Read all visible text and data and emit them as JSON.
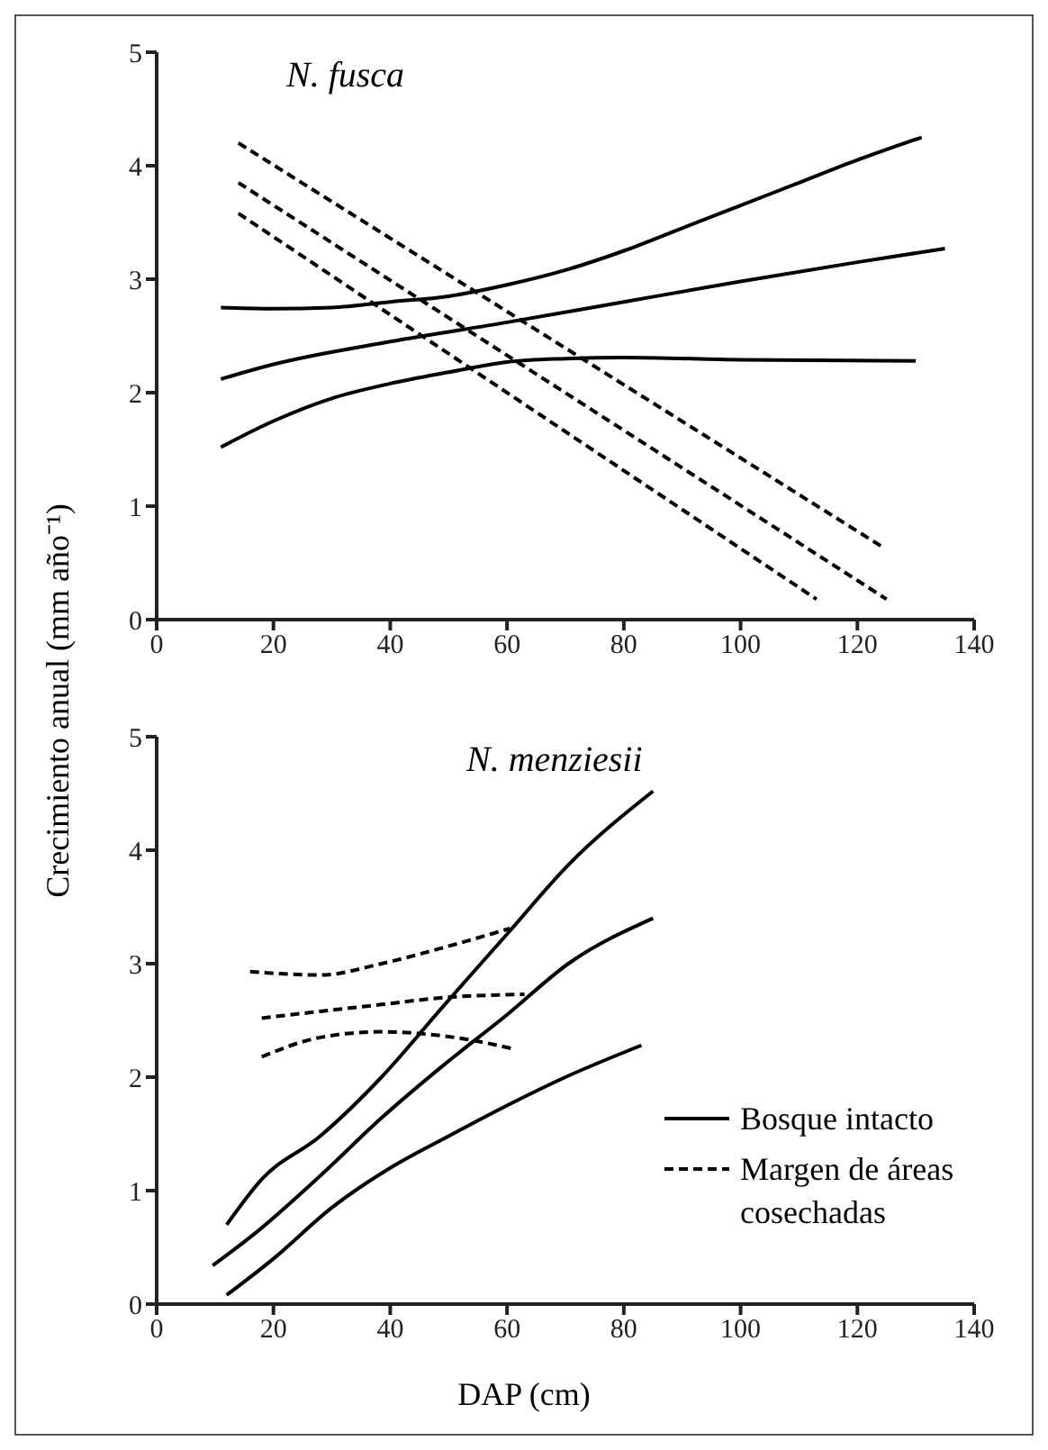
{
  "chart_data": [
    {
      "type": "line",
      "title": "N. fusca",
      "ylabel": "Crecimiento anual (mm año⁻¹)",
      "xlim": [
        0,
        140
      ],
      "xticks": [
        0,
        20,
        40,
        60,
        80,
        100,
        120,
        140
      ],
      "ylim": [
        0,
        5
      ],
      "yticks": [
        0,
        1,
        2,
        3,
        4,
        5
      ],
      "series": [
        {
          "color": "#000000",
          "line_style": "solid",
          "x": [
            11,
            20,
            30,
            40,
            50,
            60,
            70,
            80,
            90,
            100,
            110,
            120,
            131
          ],
          "values": [
            2.75,
            2.74,
            2.75,
            2.8,
            2.85,
            2.95,
            3.08,
            3.25,
            3.45,
            3.65,
            3.85,
            4.05,
            4.25
          ]
        },
        {
          "color": "#000000",
          "line_style": "solid",
          "x": [
            11,
            20,
            40,
            60,
            80,
            100,
            120,
            135
          ],
          "values": [
            2.12,
            2.25,
            2.45,
            2.62,
            2.8,
            2.98,
            3.15,
            3.27
          ]
        },
        {
          "color": "#000000",
          "line_style": "solid",
          "x": [
            11,
            20,
            30,
            40,
            50,
            60,
            70,
            80,
            100,
            130
          ],
          "values": [
            1.52,
            1.75,
            1.95,
            2.08,
            2.18,
            2.27,
            2.3,
            2.31,
            2.29,
            2.28
          ]
        },
        {
          "color": "#000000",
          "line_style": "dashed",
          "x": [
            14,
            124
          ],
          "values": [
            4.2,
            0.65
          ]
        },
        {
          "color": "#000000",
          "line_style": "dashed",
          "x": [
            14,
            125
          ],
          "values": [
            3.85,
            0.18
          ]
        },
        {
          "color": "#000000",
          "line_style": "dashed",
          "x": [
            14,
            113
          ],
          "values": [
            3.58,
            0.18
          ]
        }
      ]
    },
    {
      "type": "line",
      "title": "N. menziesii",
      "xlabel": "DAP (cm)",
      "xlim": [
        0,
        140
      ],
      "xticks": [
        0,
        20,
        40,
        60,
        80,
        100,
        120,
        140
      ],
      "ylim": [
        0,
        5
      ],
      "yticks": [
        0,
        1,
        2,
        3,
        4,
        5
      ],
      "legend": "bottom right",
      "series": [
        {
          "name": "Bosque intacto",
          "color": "#000000",
          "line_style": "solid",
          "x": [
            12,
            18,
            28,
            38.5,
            49,
            60,
            70.5,
            85
          ],
          "values": [
            0.7,
            1.1,
            1.48,
            2.0,
            2.62,
            3.26,
            3.87,
            4.52
          ]
        },
        {
          "color": "#000000",
          "line_style": "solid",
          "x": [
            9.6,
            17,
            28,
            38.5,
            49,
            60,
            70.5,
            85
          ],
          "values": [
            0.34,
            0.63,
            1.13,
            1.64,
            2.1,
            2.55,
            3.0,
            3.4
          ]
        },
        {
          "color": "#000000",
          "line_style": "solid",
          "x": [
            12,
            20,
            30,
            40,
            50,
            60,
            70,
            83
          ],
          "values": [
            0.08,
            0.4,
            0.85,
            1.2,
            1.48,
            1.75,
            2.0,
            2.28
          ]
        },
        {
          "name": "Margen de  áreas cosechadas",
          "color": "#000000",
          "line_style": "dashed",
          "x": [
            16,
            28,
            38.5,
            49,
            60.5
          ],
          "values": [
            2.93,
            2.9,
            3.0,
            3.14,
            3.31
          ]
        },
        {
          "color": "#000000",
          "line_style": "dashed",
          "x": [
            18,
            28,
            38.5,
            49,
            63
          ],
          "values": [
            2.52,
            2.58,
            2.64,
            2.7,
            2.73
          ]
        },
        {
          "color": "#000000",
          "line_style": "dashed",
          "x": [
            18,
            28,
            38.5,
            46,
            53.5,
            61
          ],
          "values": [
            2.18,
            2.35,
            2.4,
            2.38,
            2.33,
            2.25
          ]
        }
      ]
    }
  ]
}
